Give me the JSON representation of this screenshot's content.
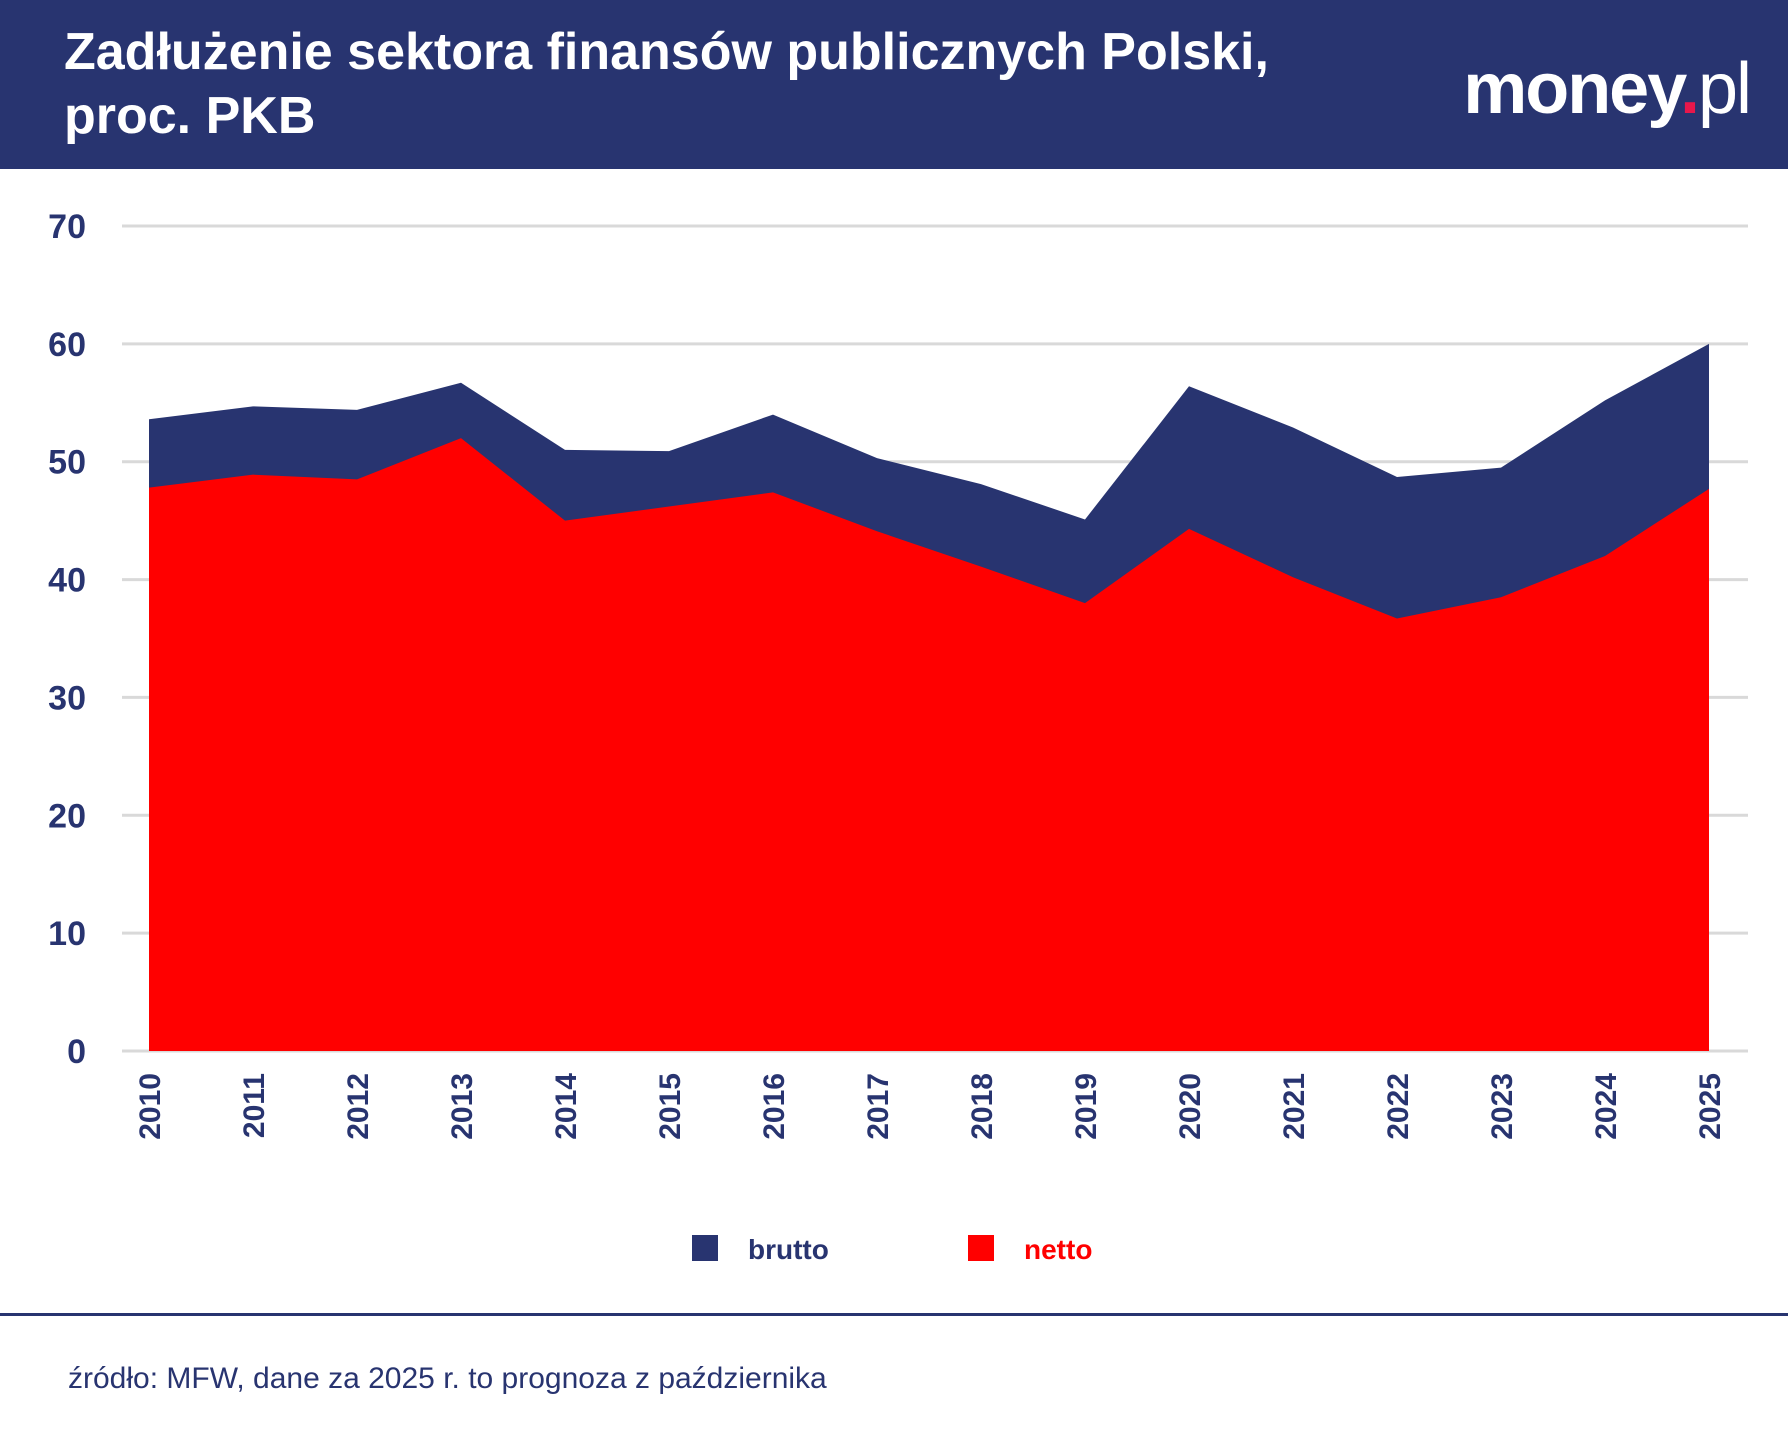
{
  "header": {
    "title": "Zadłużenie sektora finansów publicznych Polski, proc. PKB",
    "logo_text": "money.pl"
  },
  "chart_data": {
    "type": "area",
    "title": "Zadłużenie sektora finansów publicznych Polski, proc. PKB",
    "categories": [
      "2010",
      "2011",
      "2012",
      "2013",
      "2014",
      "2015",
      "2016",
      "2017",
      "2018",
      "2019",
      "2020",
      "2021",
      "2022",
      "2023",
      "2024",
      "2025"
    ],
    "series": [
      {
        "name": "brutto",
        "color": "#283470",
        "values": [
          53.6,
          54.7,
          54.4,
          56.7,
          51.0,
          50.9,
          54.0,
          50.3,
          48.1,
          45.1,
          56.4,
          52.9,
          48.7,
          49.5,
          55.2,
          60.0
        ]
      },
      {
        "name": "netto",
        "color": "#ff0000",
        "values": [
          47.8,
          48.9,
          48.5,
          52.0,
          45.0,
          46.2,
          47.4,
          44.1,
          41.1,
          38.0,
          44.3,
          40.2,
          36.7,
          38.5,
          42.0,
          47.7
        ]
      }
    ],
    "ylim": [
      0,
      70
    ],
    "yticks": [
      "0",
      "10",
      "20",
      "30",
      "40",
      "50",
      "60",
      "70"
    ],
    "grid": true,
    "legend_placement": "bottom",
    "overlapping": true
  },
  "footer": {
    "source": "źródło: MFW, dane za 2025 r. to prognoza z października"
  }
}
